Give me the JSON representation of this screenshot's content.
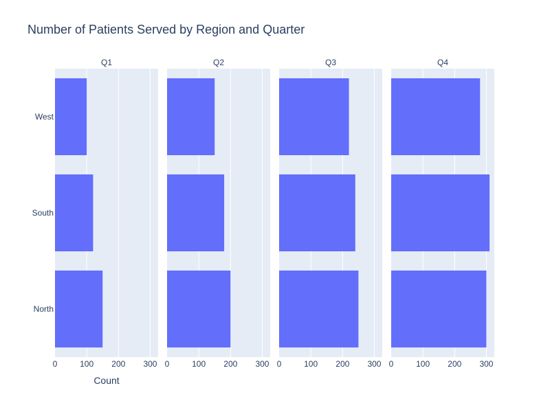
{
  "chart_data": {
    "type": "bar",
    "orientation": "horizontal",
    "title": "Number of Patients Served by Region and Quarter",
    "xlabel": "Count",
    "ylabel": "",
    "categories": [
      "North",
      "South",
      "West"
    ],
    "facets": [
      {
        "name": "Q1",
        "values": [
          150,
          120,
          100
        ]
      },
      {
        "name": "Q2",
        "values": [
          200,
          180,
          150
        ]
      },
      {
        "name": "Q3",
        "values": [
          250,
          240,
          220
        ]
      },
      {
        "name": "Q4",
        "values": [
          300,
          310,
          280
        ]
      }
    ],
    "xlim": [
      0,
      325
    ],
    "xticks": [
      0,
      100,
      200,
      300
    ],
    "xtick_labels": [
      "0",
      "100",
      "200",
      "300"
    ],
    "grid": true,
    "legend": "none",
    "colors": {
      "bar": "#636efa",
      "plot_bg": "#e5ecf6",
      "grid": "#ffffff",
      "text": "#2a3f5f"
    }
  }
}
